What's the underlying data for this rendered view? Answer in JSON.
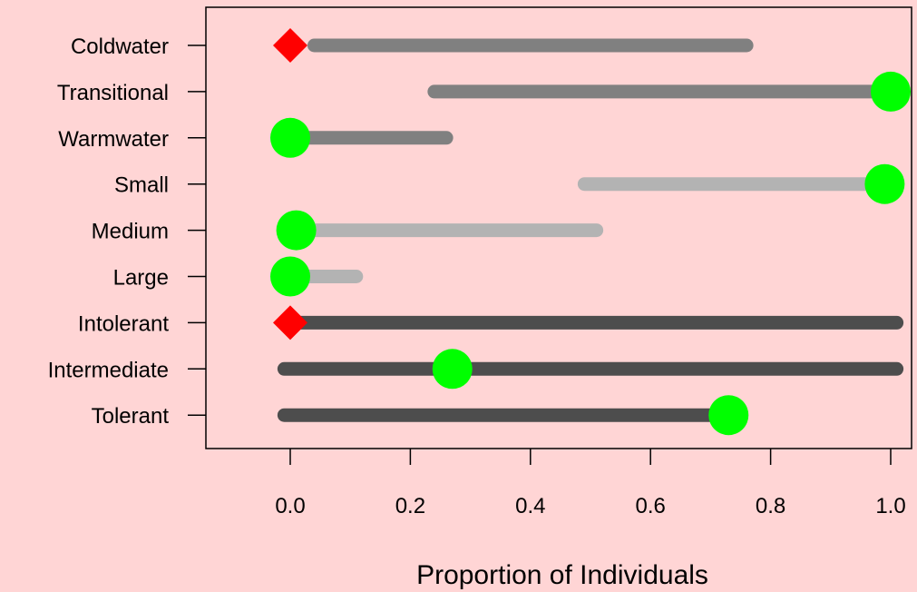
{
  "chart_data": {
    "type": "range-dot",
    "xlabel": "Proportion of Individuals",
    "ylabel": "",
    "xlim": [
      -0.14,
      1.04
    ],
    "x_ticks": [
      0.0,
      0.2,
      0.4,
      0.6,
      0.8,
      1.0
    ],
    "x_tick_labels": [
      "0.0",
      "0.2",
      "0.4",
      "0.6",
      "0.8",
      "1.0"
    ],
    "grid": false,
    "colors": {
      "background": "#ffd5d5",
      "range_group_1": "#808080",
      "range_group_2": "#b3b3b3",
      "range_group_3": "#4d4d4d",
      "marker_circle": "#00ff00",
      "marker_diamond": "#ff0000"
    },
    "categories": [
      {
        "label": "Coldwater",
        "range": [
          0.04,
          0.76
        ],
        "group": 1,
        "marker": {
          "x": 0.0,
          "shape": "diamond"
        }
      },
      {
        "label": "Transitional",
        "range": [
          0.24,
          1.0
        ],
        "group": 1,
        "marker": {
          "x": 1.0,
          "shape": "circle"
        }
      },
      {
        "label": "Warmwater",
        "range": [
          0.0,
          0.26
        ],
        "group": 1,
        "marker": {
          "x": 0.0,
          "shape": "circle"
        }
      },
      {
        "label": "Small",
        "range": [
          0.49,
          0.99
        ],
        "group": 2,
        "marker": {
          "x": 0.99,
          "shape": "circle"
        }
      },
      {
        "label": "Medium",
        "range": [
          0.01,
          0.51
        ],
        "group": 2,
        "marker": {
          "x": 0.01,
          "shape": "circle"
        }
      },
      {
        "label": "Large",
        "range": [
          0.0,
          0.11
        ],
        "group": 2,
        "marker": {
          "x": 0.0,
          "shape": "circle"
        }
      },
      {
        "label": "Intolerant",
        "range": [
          0.0,
          1.01
        ],
        "group": 3,
        "marker": {
          "x": 0.0,
          "shape": "diamond"
        }
      },
      {
        "label": "Intermediate",
        "range": [
          -0.01,
          1.01
        ],
        "group": 3,
        "marker": {
          "x": 0.27,
          "shape": "circle"
        }
      },
      {
        "label": "Tolerant",
        "range": [
          -0.01,
          0.73
        ],
        "group": 3,
        "marker": {
          "x": 0.73,
          "shape": "circle"
        }
      }
    ]
  }
}
